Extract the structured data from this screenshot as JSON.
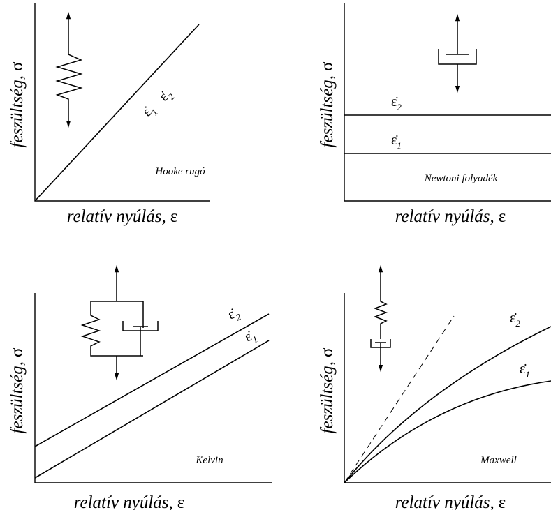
{
  "panels": [
    {
      "name": "Hooke rugó",
      "y_label": "feszültség,",
      "y_symbol": "σ",
      "x_label": "relatív nyúlás,",
      "x_symbol": "ε",
      "rate_labels": [
        {
          "symbol": "ε̇",
          "index": "1"
        },
        {
          "symbol": "ε̇",
          "index": "2"
        }
      ]
    },
    {
      "name": "Newtoni folyadék",
      "y_label": "feszültség,",
      "y_symbol": "σ",
      "x_label": "relatív nyúlás,",
      "x_symbol": "ε",
      "rate_labels": [
        {
          "symbol": "ε̇",
          "index": "2"
        },
        {
          "symbol": "ε̇",
          "index": "1"
        }
      ]
    },
    {
      "name": "Kelvin",
      "y_label": "feszültség,",
      "y_symbol": "σ",
      "x_label": "relatív nyúlás,",
      "x_symbol": "ε",
      "rate_labels": [
        {
          "symbol": "ε̇",
          "index": "2"
        },
        {
          "symbol": "ε̇",
          "index": "1"
        }
      ]
    },
    {
      "name": "Maxwell",
      "y_label": "feszültség,",
      "y_symbol": "σ",
      "x_label": "relatív nyúlás,",
      "x_symbol": "ε",
      "rate_labels": [
        {
          "symbol": "ε̇",
          "index": "2"
        },
        {
          "symbol": "ε̇",
          "index": "1"
        }
      ]
    }
  ]
}
